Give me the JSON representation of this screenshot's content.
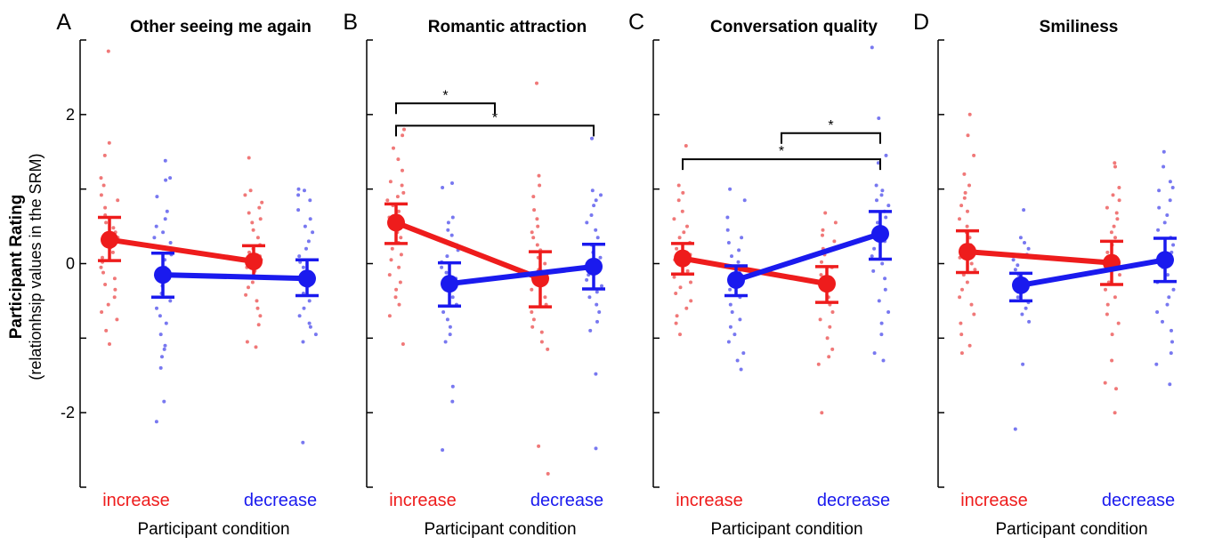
{
  "y_axis": {
    "title": "Participant Rating",
    "subtitle": "(relationhsip values in the SRM)"
  },
  "colors": {
    "increase": "#ee1c1c",
    "decrease": "#1a1aee"
  },
  "chart_data": [
    {
      "type": "scatter",
      "letter": "A",
      "title": "Other seeing me again",
      "xlabel": "Participant condition",
      "categories": [
        "increase",
        "decrease"
      ],
      "ylim": [
        -3,
        3
      ],
      "yticks": [
        -2,
        0,
        2
      ],
      "ytick_labels": [
        "-2",
        "0",
        "2"
      ],
      "series": [
        {
          "name": "increase",
          "x": [
            "increase",
            "decrease"
          ],
          "mean": [
            0.32,
            0.03
          ],
          "ci_low": [
            0.04,
            -0.18
          ],
          "ci_high": [
            0.62,
            0.24
          ],
          "points": [
            [
              2.85,
              1.62,
              1.45,
              1.15,
              1.05,
              0.92,
              0.85,
              0.75,
              0.65,
              0.55,
              0.48,
              0.42,
              0.35,
              0.28,
              0.22,
              0.15,
              0.08,
              0.02,
              -0.05,
              -0.12,
              -0.2,
              -0.28,
              -0.35,
              -0.45,
              -0.55,
              -0.65,
              -0.75,
              -0.9,
              -1.08
            ],
            [
              1.42,
              0.98,
              0.92,
              0.82,
              0.75,
              0.68,
              0.6,
              0.55,
              0.45,
              0.35,
              0.25,
              0.2,
              0.15,
              0.1,
              0.05,
              0.0,
              -0.05,
              -0.1,
              -0.18,
              -0.25,
              -0.32,
              -0.42,
              -0.5,
              -0.6,
              -0.7,
              -0.82,
              -1.05,
              -1.12
            ]
          ]
        },
        {
          "name": "decrease",
          "x": [
            "increase",
            "decrease"
          ],
          "mean": [
            -0.15,
            -0.2
          ],
          "ci_low": [
            -0.45,
            -0.43
          ],
          "ci_high": [
            0.14,
            0.05
          ],
          "points": [
            [
              1.38,
              1.15,
              1.12,
              0.9,
              0.7,
              0.6,
              0.5,
              0.42,
              0.35,
              0.28,
              0.2,
              0.12,
              0.05,
              -0.05,
              -0.12,
              -0.2,
              -0.3,
              -0.4,
              -0.5,
              -0.6,
              -0.7,
              -0.8,
              -0.95,
              -1.1,
              -1.15,
              -1.25,
              -1.4,
              -1.85,
              -2.12
            ],
            [
              1.0,
              0.98,
              0.92,
              0.85,
              0.72,
              0.6,
              0.5,
              0.42,
              0.3,
              0.2,
              0.1,
              0.02,
              -0.05,
              -0.12,
              -0.22,
              -0.3,
              -0.4,
              -0.5,
              -0.6,
              -0.7,
              -0.8,
              -0.85,
              -0.95,
              -1.05,
              -2.4
            ]
          ]
        }
      ],
      "significance": []
    },
    {
      "type": "scatter",
      "letter": "B",
      "title": "Romantic attraction",
      "xlabel": "Participant condition",
      "categories": [
        "increase",
        "decrease"
      ],
      "ylim": [
        -3,
        3
      ],
      "yticks": [
        -2,
        0,
        2
      ],
      "ytick_labels": [
        "",
        "",
        ""
      ],
      "series": [
        {
          "name": "increase",
          "x": [
            "increase",
            "decrease"
          ],
          "mean": [
            0.55,
            -0.2
          ],
          "ci_low": [
            0.27,
            -0.58
          ],
          "ci_high": [
            0.8,
            0.16
          ],
          "points": [
            [
              1.8,
              1.72,
              1.55,
              1.4,
              1.25,
              1.1,
              1.05,
              0.95,
              0.9,
              0.85,
              0.78,
              0.7,
              0.62,
              0.55,
              0.5,
              0.42,
              0.35,
              0.28,
              0.2,
              0.12,
              0.05,
              -0.05,
              -0.15,
              -0.25,
              -0.35,
              -0.45,
              -0.55,
              -0.7,
              -1.08
            ],
            [
              2.42,
              1.18,
              1.05,
              0.9,
              0.72,
              0.6,
              0.5,
              0.42,
              0.35,
              0.25,
              0.18,
              0.08,
              0.0,
              -0.08,
              -0.15,
              -0.25,
              -0.35,
              -0.45,
              -0.55,
              -0.65,
              -0.75,
              -0.85,
              -0.92,
              -1.05,
              -1.15,
              -2.45,
              -2.82
            ]
          ]
        },
        {
          "name": "decrease",
          "x": [
            "increase",
            "decrease"
          ],
          "mean": [
            -0.27,
            -0.04
          ],
          "ci_low": [
            -0.57,
            -0.34
          ],
          "ci_high": [
            0.01,
            0.26
          ],
          "points": [
            [
              1.08,
              1.02,
              0.62,
              0.55,
              0.45,
              0.38,
              0.3,
              0.25,
              0.18,
              0.1,
              0.02,
              -0.05,
              -0.12,
              -0.2,
              -0.28,
              -0.35,
              -0.45,
              -0.55,
              -0.65,
              -0.75,
              -0.85,
              -0.95,
              -1.05,
              -1.65,
              -1.85,
              -2.5
            ],
            [
              1.68,
              0.98,
              0.92,
              0.85,
              0.78,
              0.65,
              0.55,
              0.45,
              0.35,
              0.25,
              0.15,
              0.08,
              0.0,
              -0.08,
              -0.15,
              -0.22,
              -0.3,
              -0.38,
              -0.45,
              -0.55,
              -0.65,
              -0.78,
              -0.9,
              -1.48,
              -2.48
            ]
          ]
        }
      ],
      "significance": [
        {
          "from": 0.0,
          "to": 0.5,
          "y": 2.15,
          "label": "*"
        },
        {
          "from": 0.0,
          "to": 1.0,
          "y": 1.85,
          "label": "*"
        }
      ]
    },
    {
      "type": "scatter",
      "letter": "C",
      "title": "Conversation quality",
      "xlabel": "Participant condition",
      "categories": [
        "increase",
        "decrease"
      ],
      "ylim": [
        -3,
        3
      ],
      "yticks": [
        -2,
        0,
        2
      ],
      "ytick_labels": [
        "",
        "",
        ""
      ],
      "series": [
        {
          "name": "increase",
          "x": [
            "increase",
            "decrease"
          ],
          "mean": [
            0.07,
            -0.27
          ],
          "ci_low": [
            -0.14,
            -0.52
          ],
          "ci_high": [
            0.27,
            -0.04
          ],
          "points": [
            [
              1.58,
              1.05,
              0.95,
              0.85,
              0.7,
              0.6,
              0.5,
              0.42,
              0.35,
              0.28,
              0.2,
              0.12,
              0.05,
              -0.02,
              -0.1,
              -0.18,
              -0.25,
              -0.32,
              -0.4,
              -0.5,
              -0.6,
              -0.7,
              -0.8,
              -0.95
            ],
            [
              0.68,
              0.55,
              0.45,
              0.38,
              0.3,
              0.2,
              0.12,
              0.02,
              -0.05,
              -0.15,
              -0.25,
              -0.35,
              -0.45,
              -0.55,
              -0.65,
              -0.75,
              -0.85,
              -1.0,
              -1.15,
              -1.25,
              -1.35,
              -2.0
            ]
          ]
        },
        {
          "name": "decrease",
          "x": [
            "increase",
            "decrease"
          ],
          "mean": [
            -0.22,
            0.4
          ],
          "ci_low": [
            -0.43,
            0.06
          ],
          "ci_high": [
            -0.03,
            0.7
          ],
          "points": [
            [
              1.0,
              0.85,
              0.62,
              0.45,
              0.35,
              0.28,
              0.18,
              0.1,
              0.02,
              -0.05,
              -0.12,
              -0.2,
              -0.28,
              -0.35,
              -0.45,
              -0.55,
              -0.65,
              -0.75,
              -0.85,
              -0.95,
              -1.05,
              -1.2,
              -1.3,
              -1.42
            ],
            [
              2.9,
              1.95,
              1.45,
              1.35,
              1.05,
              0.98,
              0.92,
              0.85,
              0.78,
              0.7,
              0.62,
              0.55,
              0.45,
              0.38,
              0.3,
              0.2,
              0.1,
              0.0,
              -0.1,
              -0.2,
              -0.35,
              -0.5,
              -0.65,
              -0.8,
              -0.95,
              -1.2,
              -1.3
            ]
          ]
        }
      ],
      "significance": [
        {
          "from": 0.5,
          "to": 1.0,
          "y": 1.75,
          "label": "*"
        },
        {
          "from": 0.0,
          "to": 1.0,
          "y": 1.4,
          "label": "*"
        }
      ]
    },
    {
      "type": "scatter",
      "letter": "D",
      "title": "Smiliness",
      "xlabel": "Participant condition",
      "categories": [
        "increase",
        "decrease"
      ],
      "ylim": [
        -3,
        3
      ],
      "yticks": [
        -2,
        0,
        2
      ],
      "ytick_labels": [
        "",
        "",
        ""
      ],
      "series": [
        {
          "name": "increase",
          "x": [
            "increase",
            "decrease"
          ],
          "mean": [
            0.16,
            0.01
          ],
          "ci_low": [
            -0.12,
            -0.28
          ],
          "ci_high": [
            0.44,
            0.3
          ],
          "points": [
            [
              2.0,
              1.72,
              1.45,
              1.2,
              1.05,
              0.95,
              0.88,
              0.78,
              0.7,
              0.6,
              0.5,
              0.42,
              0.35,
              0.25,
              0.15,
              0.08,
              0.0,
              -0.08,
              -0.15,
              -0.25,
              -0.35,
              -0.45,
              -0.55,
              -0.68,
              -0.8,
              -0.95,
              -1.1,
              -1.2
            ],
            [
              1.35,
              1.3,
              1.02,
              0.92,
              0.85,
              0.75,
              0.68,
              0.6,
              0.5,
              0.42,
              0.35,
              0.25,
              0.15,
              0.05,
              -0.05,
              -0.15,
              -0.25,
              -0.35,
              -0.45,
              -0.55,
              -0.68,
              -0.8,
              -0.95,
              -1.3,
              -1.6,
              -1.68,
              -2.0
            ]
          ]
        },
        {
          "name": "decrease",
          "x": [
            "increase",
            "decrease"
          ],
          "mean": [
            -0.29,
            0.05
          ],
          "ci_low": [
            -0.5,
            -0.24
          ],
          "ci_high": [
            -0.13,
            0.34
          ],
          "points": [
            [
              0.72,
              0.35,
              0.28,
              0.2,
              0.12,
              0.05,
              -0.02,
              -0.08,
              -0.15,
              -0.22,
              -0.3,
              -0.38,
              -0.45,
              -0.52,
              -0.6,
              -0.68,
              -0.78,
              -1.35,
              -2.22
            ],
            [
              1.5,
              1.3,
              1.1,
              1.02,
              0.98,
              0.85,
              0.75,
              0.65,
              0.55,
              0.45,
              0.35,
              0.25,
              0.15,
              0.05,
              -0.05,
              -0.15,
              -0.25,
              -0.35,
              -0.45,
              -0.55,
              -0.65,
              -0.78,
              -0.9,
              -1.05,
              -1.2,
              -1.35,
              -1.62
            ]
          ]
        }
      ],
      "significance": []
    }
  ]
}
